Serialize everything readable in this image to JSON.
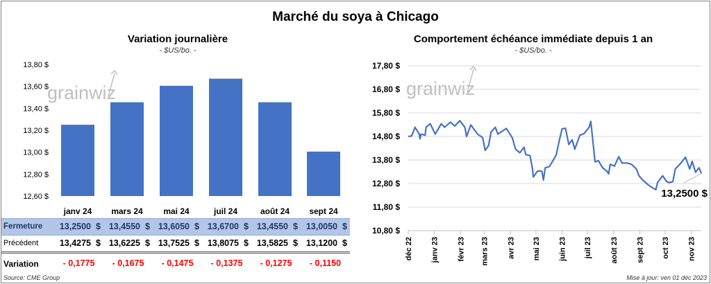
{
  "title": "Marché du soya à Chicago",
  "logo_text": "grainwiz",
  "left": {
    "subtitle": "Variation journalière",
    "unit": "- $US/bo. -"
  },
  "right": {
    "subtitle": "Comportement échéance immédiate depuis 1 an",
    "unit": "- $US/bo. -",
    "annotation": "13,2500 $"
  },
  "table": {
    "row_labels": {
      "close": "Fermeture",
      "previous": "Précédent",
      "change": "Variation"
    },
    "currency": "$",
    "close": [
      "13,2500",
      "13,4550",
      "13,6050",
      "13,6700",
      "13,4550",
      "13,0050"
    ],
    "previous": [
      "13,4275",
      "13,6225",
      "13,7525",
      "13,8075",
      "13,5825",
      "13,1200"
    ],
    "change": [
      "- 0,1775",
      "- 0,1675",
      "- 0,1475",
      "- 0,1375",
      "- 0,1275",
      "- 0,1150"
    ]
  },
  "source": "Source: CME Group",
  "updated": "Mise à jour: ven 01 déc 2023",
  "colors": {
    "series": "#4472c4",
    "close_band": "#b4c6e7",
    "negative": "#ff0000",
    "grid": "#d9d9d9",
    "watermark": "#bfbfbf"
  },
  "chart_data": [
    {
      "type": "bar",
      "title": "Variation journalière",
      "ylabel": "- $US/bo. -",
      "categories": [
        "janv 24",
        "mars 24",
        "mai 24",
        "juil 24",
        "août 24",
        "sept 24"
      ],
      "values": [
        13.25,
        13.455,
        13.605,
        13.67,
        13.455,
        13.005
      ],
      "ylim": [
        12.6,
        13.8
      ],
      "yticks": [
        "12,60 $",
        "12,80 $",
        "13,00 $",
        "13,20 $",
        "13,40 $",
        "13,60 $",
        "13,80 $"
      ],
      "grid": false
    },
    {
      "type": "line",
      "title": "Comportement échéance immédiate depuis 1 an",
      "ylabel": "- $US/bo. -",
      "ylim": [
        10.8,
        17.8
      ],
      "yticks": [
        "10,80 $",
        "11,80 $",
        "12,80 $",
        "13,80 $",
        "14,80 $",
        "15,80 $",
        "16,80 $",
        "17,80 $"
      ],
      "xticks": [
        "déc 22",
        "janv 23",
        "févr 23",
        "mars 23",
        "avr 23",
        "mai 23",
        "juin 23",
        "juil 23",
        "août 23",
        "sept 23",
        "oct 23",
        "nov 23"
      ],
      "grid": true,
      "last_value_label": "13,2500 $",
      "points": [
        [
          "2022-12-01",
          14.8
        ],
        [
          "2022-12-05",
          14.82
        ],
        [
          "2022-12-09",
          15.19
        ],
        [
          "2022-12-14",
          14.9
        ],
        [
          "2022-12-15",
          14.7
        ],
        [
          "2022-12-16",
          14.9
        ],
        [
          "2022-12-21",
          14.85
        ],
        [
          "2022-12-22",
          15.19
        ],
        [
          "2022-12-27",
          15.34
        ],
        [
          "2023-01-02",
          14.9
        ],
        [
          "2023-01-09",
          15.34
        ],
        [
          "2023-01-13",
          15.19
        ],
        [
          "2023-01-20",
          15.41
        ],
        [
          "2023-01-25",
          15.24
        ],
        [
          "2023-01-31",
          15.47
        ],
        [
          "2023-02-06",
          15.19
        ],
        [
          "2023-02-08",
          14.8
        ],
        [
          "2023-02-13",
          15.29
        ],
        [
          "2023-02-21",
          14.9
        ],
        [
          "2023-02-27",
          14.75
        ],
        [
          "2023-03-02",
          14.21
        ],
        [
          "2023-03-06",
          14.41
        ],
        [
          "2023-03-09",
          14.99
        ],
        [
          "2023-03-14",
          15.19
        ],
        [
          "2023-03-17",
          14.9
        ],
        [
          "2023-03-27",
          15.14
        ],
        [
          "2023-04-03",
          14.75
        ],
        [
          "2023-04-07",
          14.26
        ],
        [
          "2023-04-12",
          14.11
        ],
        [
          "2023-04-17",
          14.34
        ],
        [
          "2023-04-19",
          14.03
        ],
        [
          "2023-04-24",
          13.99
        ],
        [
          "2023-04-27",
          13.42
        ],
        [
          "2023-04-28",
          13.08
        ],
        [
          "2023-05-03",
          13.33
        ],
        [
          "2023-05-08",
          13.33
        ],
        [
          "2023-05-10",
          12.95
        ],
        [
          "2023-05-12",
          13.47
        ],
        [
          "2023-05-17",
          13.52
        ],
        [
          "2023-05-22",
          13.82
        ],
        [
          "2023-05-25",
          14.01
        ],
        [
          "2023-05-29",
          14.68
        ],
        [
          "2023-06-01",
          15.12
        ],
        [
          "2023-06-05",
          15.15
        ],
        [
          "2023-06-09",
          14.46
        ],
        [
          "2023-06-13",
          14.66
        ],
        [
          "2023-06-16",
          14.26
        ],
        [
          "2023-06-22",
          14.85
        ],
        [
          "2023-06-27",
          14.92
        ],
        [
          "2023-07-03",
          15.19
        ],
        [
          "2023-07-05",
          15.44
        ],
        [
          "2023-07-06",
          15.1
        ],
        [
          "2023-07-10",
          13.72
        ],
        [
          "2023-07-14",
          13.77
        ],
        [
          "2023-07-19",
          13.47
        ],
        [
          "2023-07-24",
          13.33
        ],
        [
          "2023-07-26",
          13.21
        ],
        [
          "2023-07-28",
          13.62
        ],
        [
          "2023-08-02",
          13.54
        ],
        [
          "2023-08-07",
          13.94
        ],
        [
          "2023-08-11",
          13.67
        ],
        [
          "2023-08-17",
          13.67
        ],
        [
          "2023-08-22",
          13.62
        ],
        [
          "2023-08-28",
          13.42
        ],
        [
          "2023-08-31",
          13.13
        ],
        [
          "2023-09-05",
          12.93
        ],
        [
          "2023-09-11",
          12.74
        ],
        [
          "2023-09-15",
          12.64
        ],
        [
          "2023-09-20",
          12.54
        ],
        [
          "2023-09-22",
          12.84
        ],
        [
          "2023-09-28",
          13.13
        ],
        [
          "2023-10-03",
          12.88
        ],
        [
          "2023-10-06",
          12.84
        ],
        [
          "2023-10-10",
          12.88
        ],
        [
          "2023-10-13",
          13.42
        ],
        [
          "2023-10-19",
          13.64
        ],
        [
          "2023-10-25",
          13.92
        ],
        [
          "2023-10-30",
          13.42
        ],
        [
          "2023-11-02",
          13.74
        ],
        [
          "2023-11-06",
          13.28
        ],
        [
          "2023-11-10",
          13.47
        ],
        [
          "2023-11-13",
          13.23
        ]
      ]
    }
  ]
}
